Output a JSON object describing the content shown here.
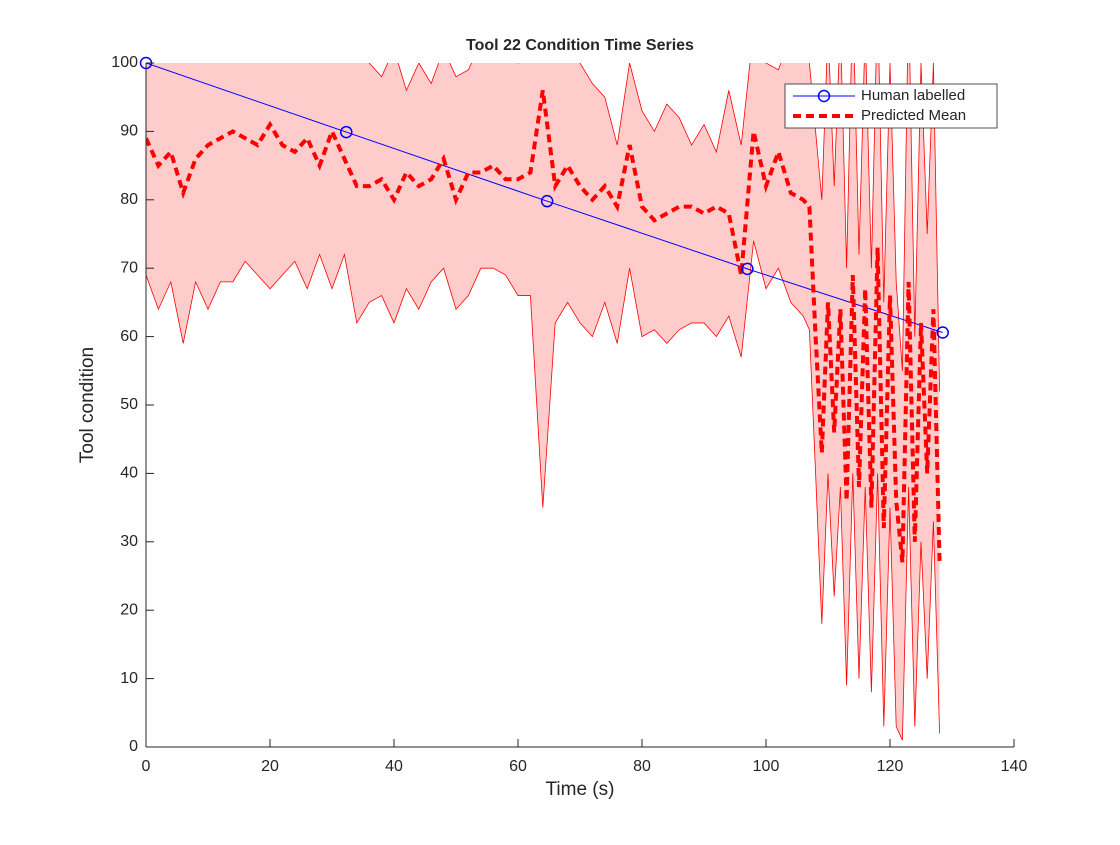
{
  "chart_data": {
    "type": "line",
    "title": "Tool 22 Condition Time Series",
    "xlabel": "Time (s)",
    "ylabel": "Tool condition",
    "xlim": [
      0,
      140
    ],
    "xticks": [
      0,
      20,
      40,
      60,
      80,
      100,
      120,
      140
    ],
    "ylim": [
      0,
      100
    ],
    "yticks": [
      0,
      10,
      20,
      30,
      40,
      50,
      60,
      70,
      80,
      90,
      100
    ],
    "grid": false,
    "legend": "upper right",
    "series": [
      {
        "name": "Human labelled",
        "color": "#0000ff",
        "style": "solid-circle",
        "x": [
          0,
          32.3,
          64.7,
          97,
          128.5
        ],
        "values": [
          100,
          89.9,
          79.8,
          69.9,
          60.6
        ]
      },
      {
        "name": "Predicted Mean",
        "color": "#ff0000",
        "style": "dashed",
        "x": [
          0,
          2,
          4,
          6,
          8,
          10,
          12,
          14,
          16,
          18,
          20,
          22,
          24,
          26,
          28,
          30,
          32,
          34,
          36,
          38,
          40,
          42,
          44,
          46,
          48,
          50,
          52,
          54,
          56,
          58,
          60,
          62,
          64,
          66,
          68,
          70,
          72,
          74,
          76,
          78,
          80,
          82,
          84,
          86,
          88,
          90,
          92,
          94,
          96,
          98,
          100,
          102,
          104,
          106,
          107,
          108,
          109,
          110,
          111,
          112,
          113,
          114,
          115,
          116,
          117,
          118,
          119,
          120,
          121,
          122,
          123,
          124,
          125,
          126,
          127,
          128
        ],
        "values": [
          89,
          85,
          87,
          81,
          86,
          88,
          89,
          90,
          89,
          88,
          91,
          88,
          87,
          89,
          85,
          90,
          86,
          82,
          82,
          83,
          80,
          84,
          82,
          83,
          86,
          80,
          84,
          84,
          85,
          83,
          83,
          84,
          96,
          82,
          85,
          82,
          80,
          82,
          79,
          88,
          79,
          77,
          78,
          79,
          79,
          78,
          79,
          78,
          69,
          90,
          82,
          87,
          81,
          80,
          79,
          60,
          43,
          65,
          46,
          64,
          36,
          69,
          38,
          67,
          35,
          73,
          32,
          66,
          36,
          27,
          68,
          30,
          62,
          40,
          64,
          27
        ]
      }
    ],
    "band": {
      "color": "#ffcccc",
      "edge_color": "#ff0000",
      "upper": [
        105,
        104,
        106,
        103,
        105,
        104,
        106,
        105,
        104,
        106,
        105,
        104,
        106,
        103,
        105,
        104,
        106,
        103,
        100,
        98,
        102,
        96,
        100,
        97,
        102,
        98,
        99,
        103,
        101,
        104,
        100,
        104,
        112,
        105,
        104,
        100,
        97,
        95,
        88,
        100,
        93,
        90,
        94,
        92,
        88,
        91,
        87,
        96,
        88,
        105,
        100,
        99,
        104,
        102,
        100,
        90,
        80,
        105,
        82,
        106,
        70,
        110,
        72,
        105,
        70,
        110,
        65,
        100,
        68,
        55,
        110,
        60,
        100,
        75,
        100,
        52
      ],
      "lower": [
        69,
        64,
        68,
        59,
        68,
        64,
        68,
        68,
        71,
        69,
        67,
        69,
        71,
        67,
        72,
        67,
        72,
        62,
        65,
        66,
        62,
        67,
        64,
        68,
        70,
        64,
        66,
        70,
        70,
        69,
        66,
        66,
        35,
        62,
        65,
        62,
        60,
        65,
        59,
        70,
        60,
        61,
        59,
        61,
        62,
        62,
        60,
        63,
        57,
        74,
        67,
        70,
        65,
        63,
        61,
        40,
        18,
        40,
        22,
        38,
        9,
        40,
        10,
        38,
        8,
        40,
        3,
        35,
        3,
        1,
        38,
        3,
        30,
        10,
        33,
        2
      ]
    }
  }
}
